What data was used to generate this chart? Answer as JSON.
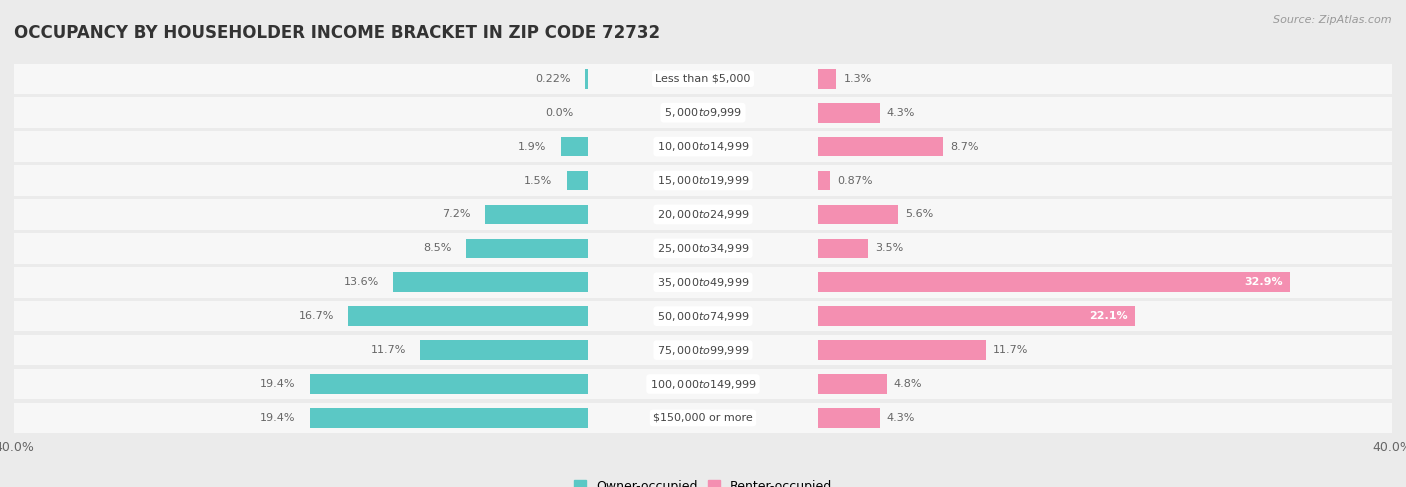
{
  "title": "OCCUPANCY BY HOUSEHOLDER INCOME BRACKET IN ZIP CODE 72732",
  "source": "Source: ZipAtlas.com",
  "categories": [
    "Less than $5,000",
    "$5,000 to $9,999",
    "$10,000 to $14,999",
    "$15,000 to $19,999",
    "$20,000 to $24,999",
    "$25,000 to $34,999",
    "$35,000 to $49,999",
    "$50,000 to $74,999",
    "$75,000 to $99,999",
    "$100,000 to $149,999",
    "$150,000 or more"
  ],
  "owner_values": [
    0.22,
    0.0,
    1.9,
    1.5,
    7.2,
    8.5,
    13.6,
    16.7,
    11.7,
    19.4,
    19.4
  ],
  "renter_values": [
    1.3,
    4.3,
    8.7,
    0.87,
    5.6,
    3.5,
    32.9,
    22.1,
    11.7,
    4.8,
    4.3
  ],
  "owner_labels": [
    "0.22%",
    "0.0%",
    "1.9%",
    "1.5%",
    "7.2%",
    "8.5%",
    "13.6%",
    "16.7%",
    "11.7%",
    "19.4%",
    "19.4%"
  ],
  "renter_labels": [
    "1.3%",
    "4.3%",
    "8.7%",
    "0.87%",
    "5.6%",
    "3.5%",
    "32.9%",
    "22.1%",
    "11.7%",
    "4.8%",
    "4.3%"
  ],
  "owner_color": "#5BC8C5",
  "renter_color": "#F48FB1",
  "background_color": "#EBEBEB",
  "row_bg_color": "#F7F7F7",
  "label_box_color": "#FFFFFF",
  "xlim": 40.0,
  "title_fontsize": 12,
  "label_fontsize": 8,
  "category_fontsize": 8,
  "source_fontsize": 8,
  "legend_fontsize": 9,
  "value_label_color": "#666666",
  "category_label_color": "#444444"
}
